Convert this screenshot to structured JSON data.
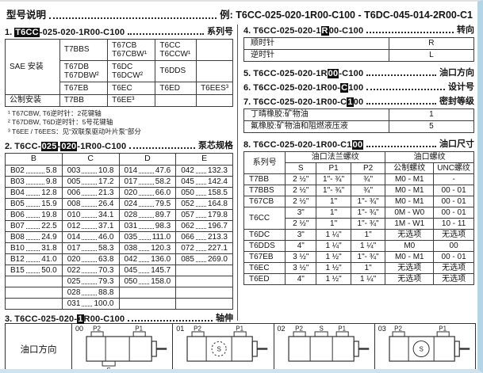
{
  "title": {
    "left": "型号说明",
    "right": "例: T6CC-025-020-1R00-C100 - T6DC-045-014-2R00-C1"
  },
  "sections": {
    "s1": {
      "num": "1.",
      "label": "系列号",
      "code": [
        {
          "t": "T6CC",
          "hl": true
        },
        {
          "t": "-025-020-1R00-C100 "
        }
      ]
    },
    "s2": {
      "num": "2.",
      "label": "泵芯规格",
      "code": [
        {
          "t": "T6CC-"
        },
        {
          "t": "025",
          "hl": true
        },
        {
          "t": "-"
        },
        {
          "t": "020",
          "hl": true
        },
        {
          "t": "-1R00-C100"
        }
      ]
    },
    "s3": {
      "num": "3.",
      "label": "轴伸",
      "code": [
        {
          "t": "T6CC-025-020-"
        },
        {
          "t": "1",
          "hl": true
        },
        {
          "t": "R00-C100"
        }
      ]
    },
    "s4": {
      "num": "4.",
      "label": "转向",
      "code": [
        {
          "t": "T6CC-025-020-1"
        },
        {
          "t": "R",
          "hl": true
        },
        {
          "t": "00-C100"
        }
      ]
    },
    "s5": {
      "num": "5.",
      "label": "油口方向",
      "code": [
        {
          "t": "T6CC-025-020-1R"
        },
        {
          "t": "00",
          "hl": true
        },
        {
          "t": "-C100"
        }
      ]
    },
    "s6": {
      "num": "6.",
      "label": "设计号",
      "code": [
        {
          "t": "T6CC-025-020-1R00-"
        },
        {
          "t": "C",
          "hl": true
        },
        {
          "t": "100"
        }
      ]
    },
    "s7": {
      "num": "7.",
      "label": "密封等级",
      "code": [
        {
          "t": "T6CC-025-020-1R00-C"
        },
        {
          "t": "1",
          "hl": true
        },
        {
          "t": "00"
        }
      ]
    },
    "s8": {
      "num": "8.",
      "label": "油口尺寸",
      "code": [
        {
          "t": "T6CC-025-020-1R00-C1"
        },
        {
          "t": "00",
          "hl": true
        },
        {
          "t": " "
        }
      ]
    }
  },
  "series_table": {
    "rows": [
      [
        {
          "t": "SAE 安装",
          "rs": 3
        },
        {
          "t": "T7BBS"
        },
        {
          "t": "T67CB\nT67CBW¹"
        },
        {
          "t": "T6CC\nT6CCW¹"
        },
        {
          "t": ""
        }
      ],
      [
        {
          "t": "T67DB\nT67DBW²"
        },
        {
          "t": "T6DC\nT6DCW²"
        },
        {
          "t": "T6DDS"
        },
        {
          "t": ""
        }
      ],
      [
        {
          "t": "T67EB"
        },
        {
          "t": "T6EC"
        },
        {
          "t": "T6ED"
        },
        {
          "t": "T6EES³"
        }
      ],
      [
        {
          "t": "公制安装"
        },
        {
          "t": "T7BB"
        },
        {
          "t": "T6EE³"
        },
        {
          "t": ""
        },
        {
          "t": ""
        }
      ]
    ]
  },
  "footnotes": [
    "¹ T67CBW, T6逆时针：2花键轴",
    "² T67DBW, T6D逆时针：5号花键轴",
    "³ T6EE / T6EES：见“双联泵驱动叶片泵”部分"
  ],
  "pump_core_table": {
    "headers": [
      "B",
      "C",
      "D",
      "E"
    ],
    "rows": [
      [
        {
          "k": "B02",
          "v": "5.8"
        },
        {
          "k": "003",
          "v": "10.8"
        },
        {
          "k": "014",
          "v": "47.6"
        },
        {
          "k": "042",
          "v": "132.3"
        }
      ],
      [
        {
          "k": "B03",
          "v": "9.8"
        },
        {
          "k": "005",
          "v": "17.2"
        },
        {
          "k": "017",
          "v": "58.2"
        },
        {
          "k": "045",
          "v": "142.4"
        }
      ],
      [
        {
          "k": "B04",
          "v": "12.8"
        },
        {
          "k": "006",
          "v": "21.3"
        },
        {
          "k": "020",
          "v": "66.0"
        },
        {
          "k": "050",
          "v": "158.5"
        }
      ],
      [
        {
          "k": "B05",
          "v": "15.9"
        },
        {
          "k": "008",
          "v": "26.4"
        },
        {
          "k": "024",
          "v": "79.5"
        },
        {
          "k": "052",
          "v": "164.8"
        }
      ],
      [
        {
          "k": "B06",
          "v": "19.8"
        },
        {
          "k": "010",
          "v": "34.1"
        },
        {
          "k": "028",
          "v": "89.7"
        },
        {
          "k": "057",
          "v": "179.8"
        }
      ],
      [
        {
          "k": "B07",
          "v": "22.5"
        },
        {
          "k": "012",
          "v": "37.1"
        },
        {
          "k": "031",
          "v": "98.3"
        },
        {
          "k": "062",
          "v": "196.7"
        }
      ],
      [
        {
          "k": "B08",
          "v": "24.9"
        },
        {
          "k": "014",
          "v": "46.0"
        },
        {
          "k": "035",
          "v": "111.0"
        },
        {
          "k": "066",
          "v": "213.3"
        }
      ],
      [
        {
          "k": "B10",
          "v": "31.8"
        },
        {
          "k": "017",
          "v": "58.3"
        },
        {
          "k": "038",
          "v": "120.3"
        },
        {
          "k": "072",
          "v": "227.1"
        }
      ],
      [
        {
          "k": "B12",
          "v": "41.0"
        },
        {
          "k": "020",
          "v": "63.8"
        },
        {
          "k": "042",
          "v": "136.0"
        },
        {
          "k": "085",
          "v": "269.0"
        }
      ],
      [
        {
          "k": "B15",
          "v": "50.0"
        },
        {
          "k": "022",
          "v": "70.3"
        },
        {
          "k": "045",
          "v": "145.7"
        },
        {
          "t": ""
        }
      ],
      [
        {
          "t": ""
        },
        {
          "k": "025",
          "v": "79.3"
        },
        {
          "k": "050",
          "v": "158.0"
        },
        {
          "t": ""
        }
      ],
      [
        {
          "t": ""
        },
        {
          "k": "028",
          "v": "88.8"
        },
        {
          "t": ""
        },
        {
          "t": ""
        }
      ],
      [
        {
          "t": ""
        },
        {
          "k": "031",
          "v": "100.0"
        },
        {
          "t": ""
        },
        {
          "t": ""
        }
      ]
    ]
  },
  "rotation_table": {
    "rows": [
      [
        {
          "t": "顺时针"
        },
        {
          "t": "R"
        }
      ],
      [
        {
          "t": "逆时针"
        },
        {
          "t": "L"
        }
      ]
    ]
  },
  "seal_table": {
    "rows": [
      [
        {
          "t": "丁晴橡胶:矿物油"
        },
        {
          "t": "1"
        }
      ],
      [
        {
          "t": "氟橡胶:矿物油和阻燃液压液"
        },
        {
          "t": "5"
        }
      ]
    ]
  },
  "port_size_table": {
    "header_rows": [
      [
        {
          "t": "系列号",
          "rs": 2,
          "cls": "hd"
        },
        {
          "t": "油口法兰螺纹",
          "cs": 3,
          "cls": "hd"
        },
        {
          "t": "油口螺纹",
          "cs": 2,
          "cls": "hd"
        }
      ],
      [
        {
          "t": "S",
          "cls": "hd"
        },
        {
          "t": "P1",
          "cls": "hd"
        },
        {
          "t": "P2",
          "cls": "hd"
        },
        {
          "t": "公制螺纹",
          "cls": "hd"
        },
        {
          "t": "UNC螺纹",
          "cls": "hd"
        }
      ]
    ],
    "rows": [
      [
        {
          "t": "T7BB",
          "cls": "c0"
        },
        {
          "t": "2 ½\""
        },
        {
          "t": "1\"- ¾\""
        },
        {
          "t": "¾\""
        },
        {
          "t": "M0 - M1"
        },
        {
          "t": "-"
        }
      ],
      [
        {
          "t": "T7BBS",
          "cls": "c0"
        },
        {
          "t": "2 ½\""
        },
        {
          "t": "1\"- ¾\""
        },
        {
          "t": "¾\""
        },
        {
          "t": "M0 - M1"
        },
        {
          "t": "00 - 01"
        }
      ],
      [
        {
          "t": "T67CB",
          "cls": "c0"
        },
        {
          "t": "2 ½\""
        },
        {
          "t": "1\""
        },
        {
          "t": "1\"- ¾\""
        },
        {
          "t": "M0 - M1"
        },
        {
          "t": "00 - 01"
        }
      ],
      [
        {
          "t": "T6CC",
          "rs": 2,
          "cls": "c0"
        },
        {
          "t": "3\""
        },
        {
          "t": "1\""
        },
        {
          "t": "1\"- ¾\""
        },
        {
          "t": "0M - W0"
        },
        {
          "t": "00 - 01"
        }
      ],
      [
        {
          "t": "2 ½\""
        },
        {
          "t": "1\""
        },
        {
          "t": "1\"- ¾\""
        },
        {
          "t": "1M - W1"
        },
        {
          "t": "10 - 11"
        }
      ],
      [
        {
          "t": "T6DC",
          "cls": "c0"
        },
        {
          "t": "3\""
        },
        {
          "t": "1 ¼\""
        },
        {
          "t": "1\""
        },
        {
          "t": "无选项"
        },
        {
          "t": "无选项"
        }
      ],
      [
        {
          "t": "T6DDS",
          "cls": "c0"
        },
        {
          "t": "4\""
        },
        {
          "t": "1 ¼\""
        },
        {
          "t": "1 ¼\""
        },
        {
          "t": "M0"
        },
        {
          "t": "00"
        }
      ],
      [
        {
          "t": "T67EB",
          "cls": "c0"
        },
        {
          "t": "3 ½\""
        },
        {
          "t": "1 ½\""
        },
        {
          "t": "1\"- ¾\""
        },
        {
          "t": "M0 - M1"
        },
        {
          "t": "00 - 01"
        }
      ],
      [
        {
          "t": "T6EC",
          "cls": "c0"
        },
        {
          "t": "3 ½\""
        },
        {
          "t": "1 ½\""
        },
        {
          "t": "1\""
        },
        {
          "t": "无选项"
        },
        {
          "t": "无选项"
        }
      ],
      [
        {
          "t": "T6ED",
          "cls": "c0"
        },
        {
          "t": "4\""
        },
        {
          "t": "1 ½\""
        },
        {
          "t": "1 ¼\""
        },
        {
          "t": "无选项"
        },
        {
          "t": "无选项"
        }
      ]
    ]
  },
  "port_direction": {
    "label": "油口方向",
    "cells": [
      {
        "id": "00",
        "p2": "P2",
        "p1": "P1",
        "s": "S"
      },
      {
        "id": "01",
        "p2": "P2",
        "p1": "P1",
        "s": "S"
      },
      {
        "id": "02",
        "p2": "P2",
        "p1": "P1",
        "s": "S"
      },
      {
        "id": "03",
        "p2": "P2",
        "p1": "P1",
        "s": "S"
      }
    ]
  }
}
